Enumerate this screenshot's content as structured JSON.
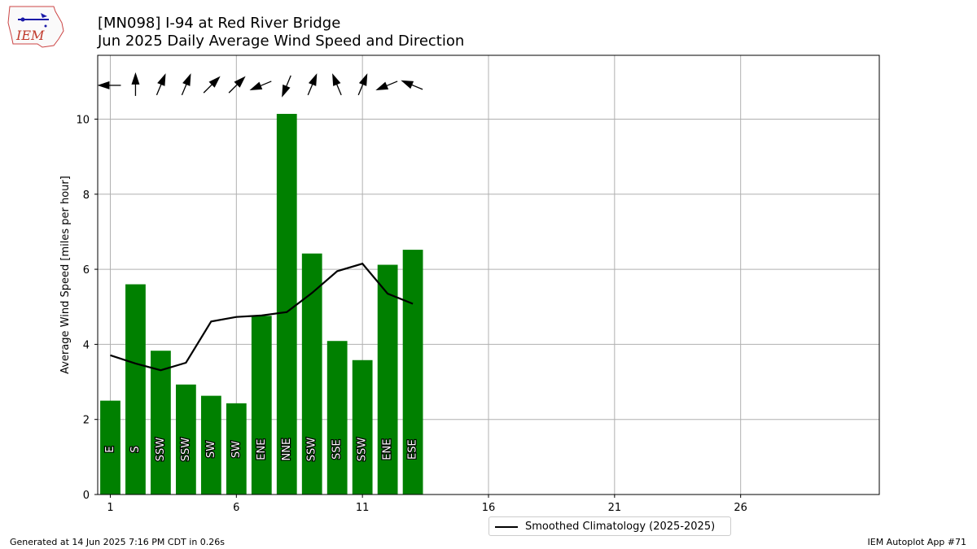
{
  "header": {
    "logo_text": "IEM",
    "title_line1": "[MN098] I-94 at Red River Bridge",
    "title_line2": "Jun 2025 Daily Average Wind Speed and Direction"
  },
  "footer": {
    "generated": "Generated at 14 Jun 2025 7:16 PM CDT in 0.26s",
    "app": "IEM Autoplot App #71"
  },
  "colors": {
    "bar": "#008000",
    "climatology": "#000000",
    "grid": "#b0b0b0"
  },
  "chart_data": {
    "type": "bar",
    "xlabel": "",
    "ylabel": "Average Wind Speed [miles per hour]",
    "xlim": [
      0.5,
      31.5
    ],
    "ylim": [
      0,
      11.7
    ],
    "x_ticks": [
      1,
      6,
      11,
      16,
      21,
      26
    ],
    "y_ticks": [
      0,
      2,
      4,
      6,
      8,
      10
    ],
    "grid": true,
    "legend_position": "bottom-center",
    "days": [
      1,
      2,
      3,
      4,
      5,
      6,
      7,
      8,
      9,
      10,
      11,
      12,
      13
    ],
    "series": [
      {
        "name": "Daily Average Wind Speed",
        "values": [
          2.5,
          5.6,
          3.83,
          2.93,
          2.63,
          2.43,
          4.76,
          10.14,
          6.42,
          4.09,
          3.58,
          6.12,
          6.52
        ],
        "directions": [
          "E",
          "S",
          "SSW",
          "SSW",
          "SW",
          "SW",
          "ENE",
          "NNE",
          "SSW",
          "SSE",
          "SSW",
          "ENE",
          "ESE"
        ],
        "direction_degrees": [
          90,
          180,
          202.5,
          202.5,
          225,
          225,
          67.5,
          22.5,
          202.5,
          157.5,
          202.5,
          67.5,
          112.5
        ]
      },
      {
        "name": "Smoothed Climatology (2025-2025)",
        "type": "line",
        "values": [
          3.71,
          3.49,
          3.31,
          3.51,
          4.61,
          4.73,
          4.77,
          4.86,
          5.37,
          5.95,
          6.15,
          5.35,
          5.08
        ]
      }
    ]
  }
}
